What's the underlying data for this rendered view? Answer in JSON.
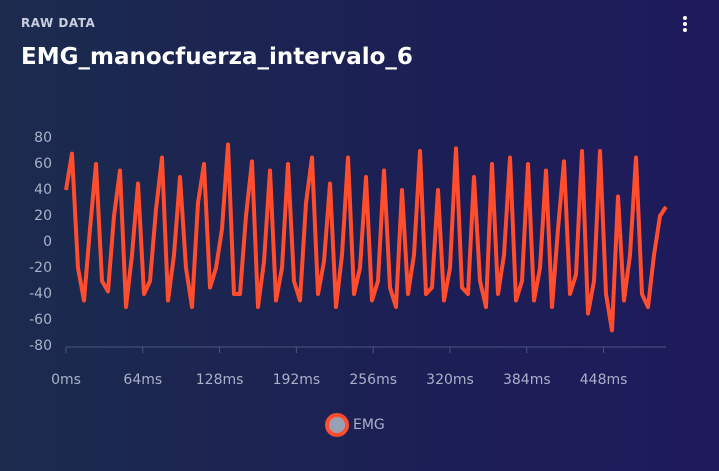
{
  "header": {
    "overline": "RAW DATA",
    "title": "EMG_manocfuerza_intervalo_6"
  },
  "chart_data": {
    "type": "line",
    "x": [
      0,
      5,
      10,
      15,
      20,
      25,
      30,
      35,
      40,
      45,
      50,
      55,
      60,
      65,
      70,
      75,
      80,
      85,
      90,
      95,
      100,
      105,
      110,
      115,
      120,
      125,
      130,
      135,
      140,
      145,
      150,
      155,
      160,
      165,
      170,
      175,
      180,
      185,
      190,
      195,
      200,
      205,
      210,
      215,
      220,
      225,
      230,
      235,
      240,
      245,
      250,
      255,
      260,
      265,
      270,
      275,
      280,
      285,
      290,
      295,
      300,
      305,
      310,
      315,
      320,
      325,
      330,
      335,
      340,
      345,
      350,
      355,
      360,
      365,
      370,
      375,
      380,
      385,
      390,
      395,
      400,
      405,
      410,
      415,
      420,
      425,
      430,
      435,
      440,
      445,
      450,
      455,
      460,
      465,
      470,
      475,
      480,
      485,
      490,
      495,
      500
    ],
    "series": [
      {
        "name": "EMG",
        "color": "#ff4d2e",
        "values": [
          40,
          68,
          -20,
          -45,
          10,
          60,
          -30,
          -38,
          20,
          55,
          -50,
          -10,
          45,
          -40,
          -30,
          25,
          65,
          -45,
          -10,
          50,
          -20,
          -50,
          30,
          60,
          -35,
          -20,
          10,
          75,
          -40,
          -40,
          20,
          62,
          -50,
          -15,
          55,
          -45,
          -20,
          60,
          -30,
          -45,
          30,
          65,
          -40,
          -15,
          45,
          -50,
          -10,
          65,
          -40,
          -20,
          50,
          -45,
          -30,
          55,
          -35,
          -50,
          40,
          -40,
          -10,
          70,
          -40,
          -35,
          40,
          -45,
          -20,
          72,
          -35,
          -40,
          50,
          -30,
          -50,
          60,
          -40,
          -10,
          65,
          -45,
          -30,
          60,
          -45,
          -20,
          55,
          -50,
          10,
          62,
          -40,
          -25,
          70,
          -55,
          -30,
          70,
          -40,
          -68,
          35,
          -45,
          -10,
          65,
          -40,
          -50,
          -10,
          20,
          27
        ]
      }
    ],
    "xlim": [
      0,
      500
    ],
    "xticks": [
      {
        "value": 0,
        "label": "0ms"
      },
      {
        "value": 64,
        "label": "64ms"
      },
      {
        "value": 128,
        "label": "128ms"
      },
      {
        "value": 192,
        "label": "192ms"
      },
      {
        "value": 256,
        "label": "256ms"
      },
      {
        "value": 320,
        "label": "320ms"
      },
      {
        "value": 384,
        "label": "384ms"
      },
      {
        "value": 448,
        "label": "448ms"
      }
    ],
    "ylim": [
      -80,
      80
    ],
    "yticks": [
      -80,
      -60,
      -40,
      -20,
      0,
      20,
      40,
      60,
      80
    ]
  }
}
